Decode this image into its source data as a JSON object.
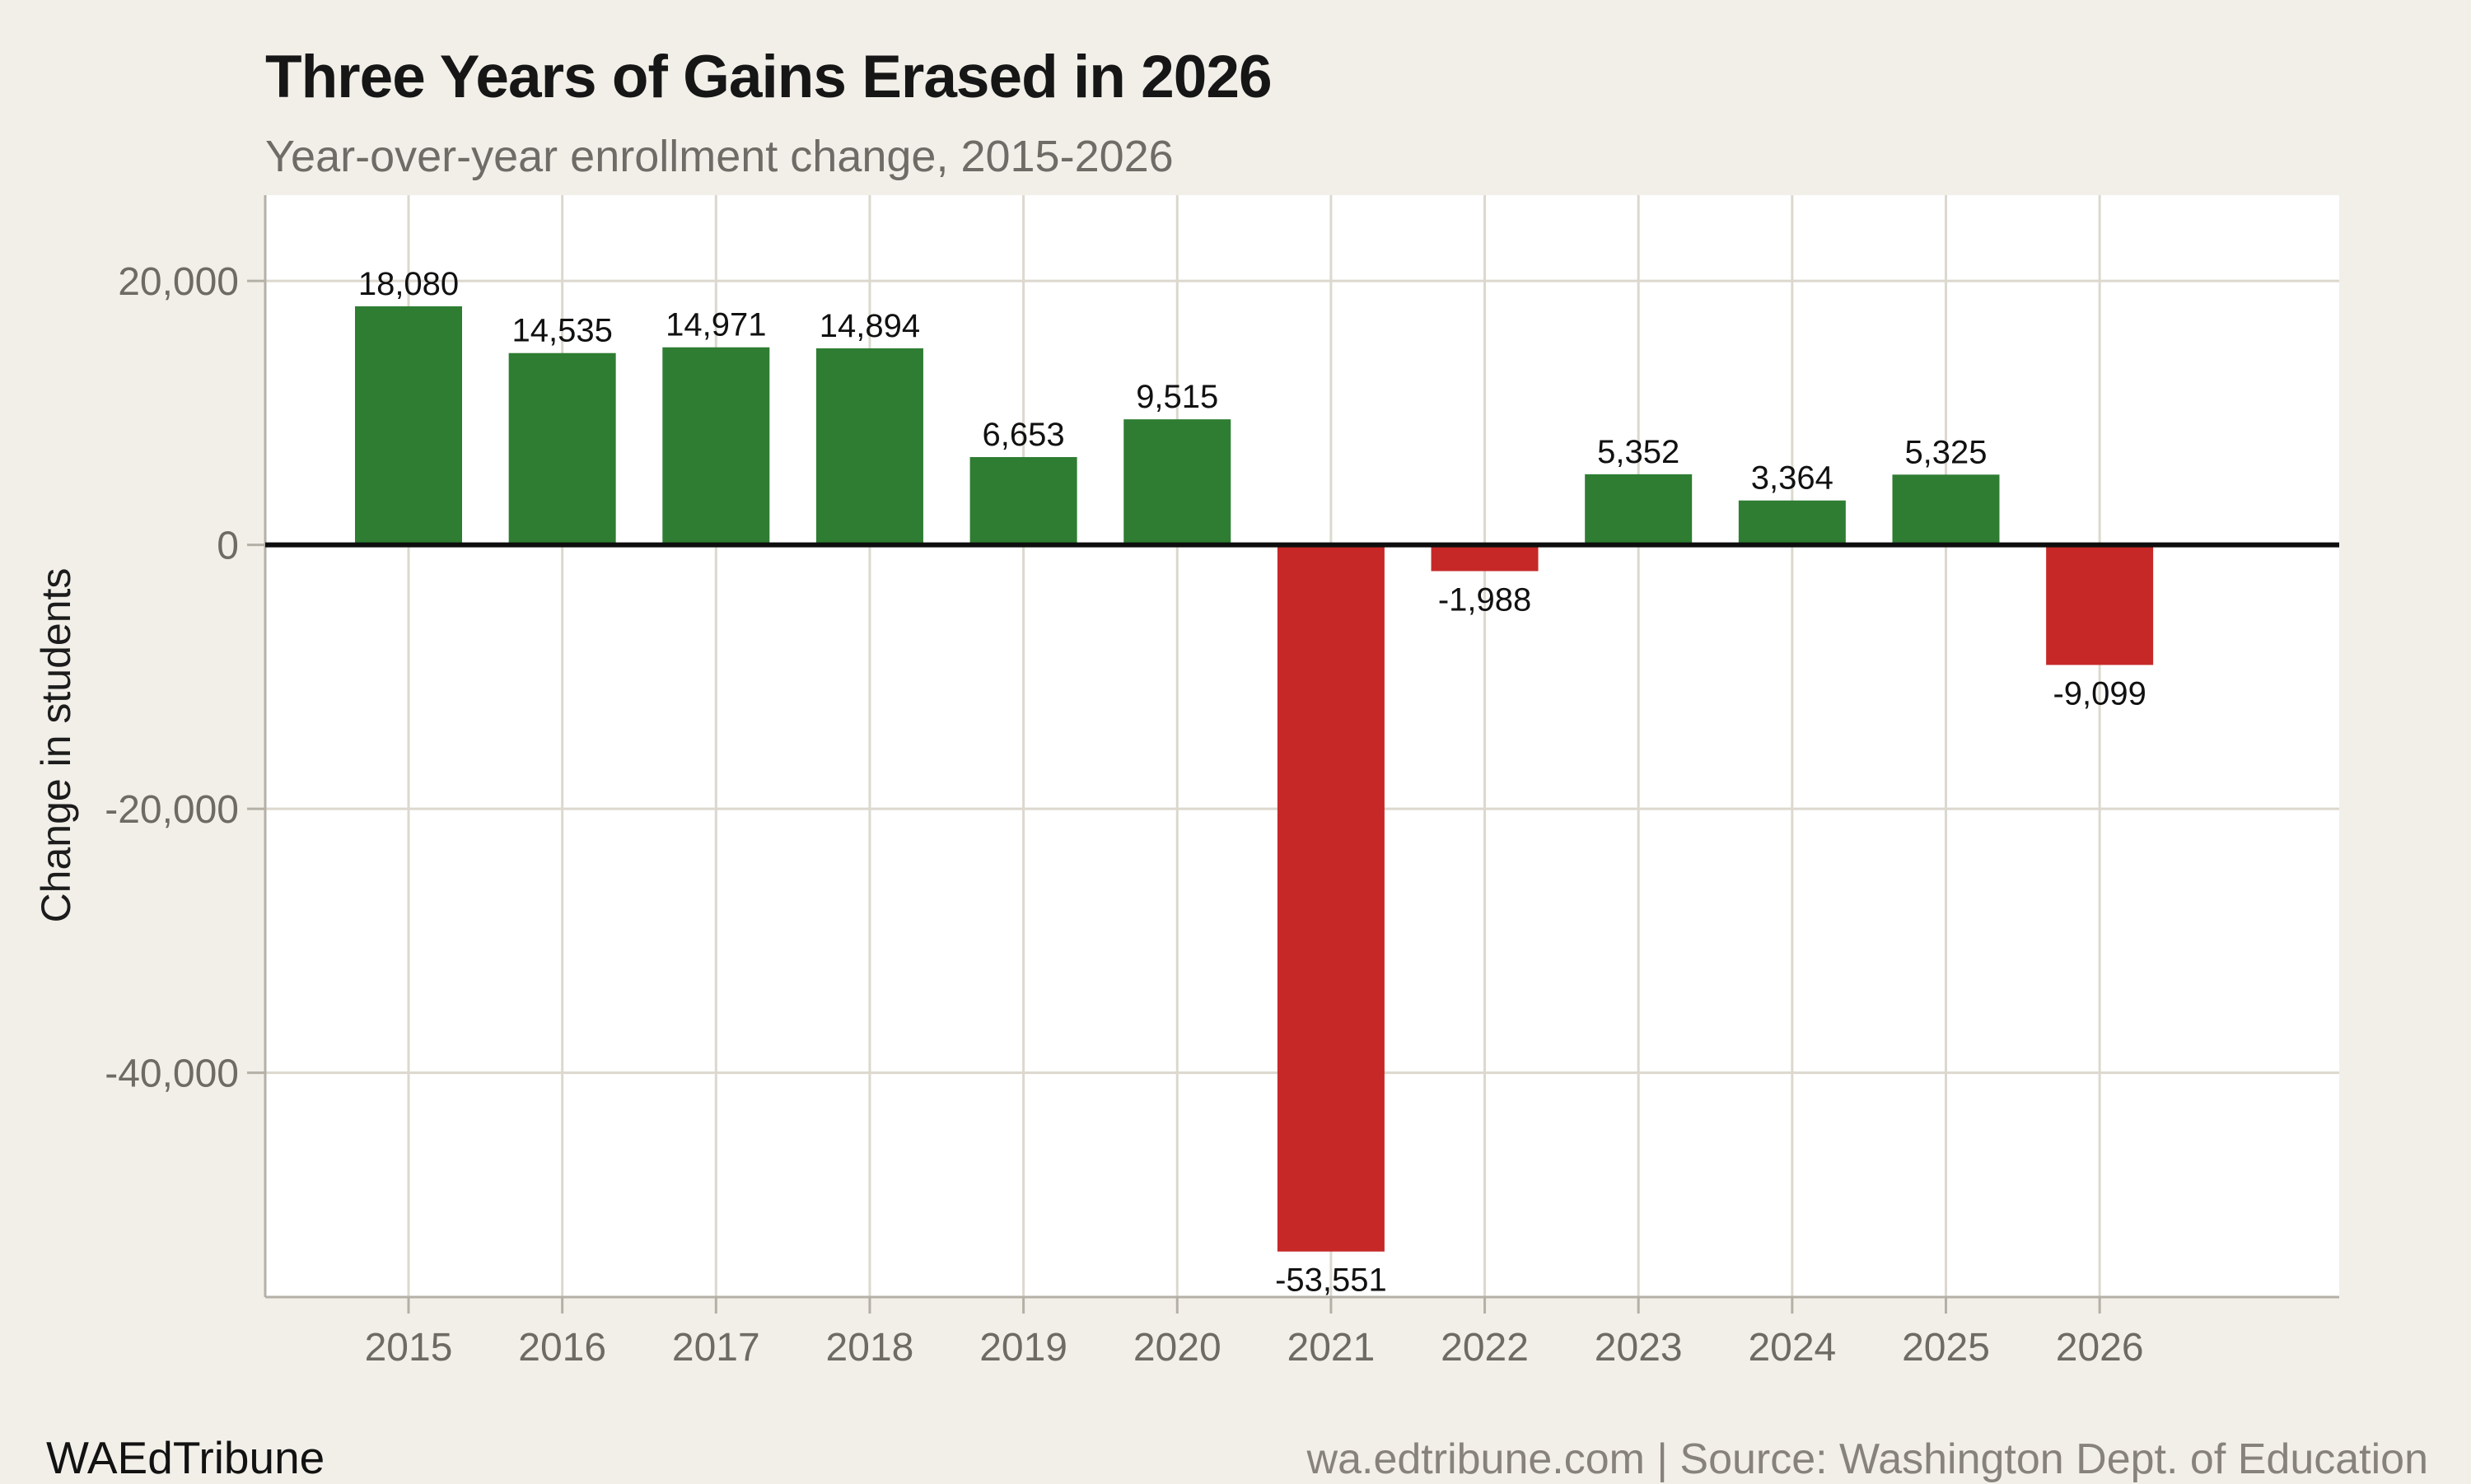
{
  "header": {
    "title": "Three Years of Gains Erased in 2026",
    "subtitle": "Year-over-year enrollment change, 2015-2026"
  },
  "footer": {
    "brand": "WAEdTribune",
    "source": "wa.edtribune.com | Source: Washington Dept. of Education"
  },
  "chart_data": {
    "type": "bar",
    "title": "Three Years of Gains Erased in 2026",
    "subtitle": "Year-over-year enrollment change, 2015-2026",
    "categories": [
      "2015",
      "2016",
      "2017",
      "2018",
      "2019",
      "2020",
      "2021",
      "2022",
      "2023",
      "2024",
      "2025",
      "2026"
    ],
    "values": [
      18080,
      14535,
      14971,
      14894,
      6653,
      9515,
      -53551,
      -1988,
      5352,
      3364,
      5325,
      -9099
    ],
    "value_labels": [
      "18,080",
      "14,535",
      "14,971",
      "14,894",
      "6,653",
      "9,515",
      "-53,551",
      "-1,988",
      "5,352",
      "3,364",
      "5,325",
      "-9,099"
    ],
    "xlabel": "",
    "ylabel": "Change in students",
    "ylim": [
      -57000,
      26500
    ],
    "yticks": [
      {
        "value": 20000,
        "label": "20,000"
      },
      {
        "value": 0,
        "label": "0"
      },
      {
        "value": -20000,
        "label": "-20,000"
      },
      {
        "value": -40000,
        "label": "-40,000"
      }
    ],
    "grid": true,
    "legend": false,
    "colors": {
      "positive": "#2e7d32",
      "negative": "#c62828",
      "zero_line": "#0e0e0e",
      "grid": "#dcd8ce",
      "spine": "#b4b0a6",
      "tick_label": "#6e6a64",
      "value_label": "#111111",
      "plot_bg": "#ffffff",
      "page_bg": "#f2efe9"
    }
  }
}
